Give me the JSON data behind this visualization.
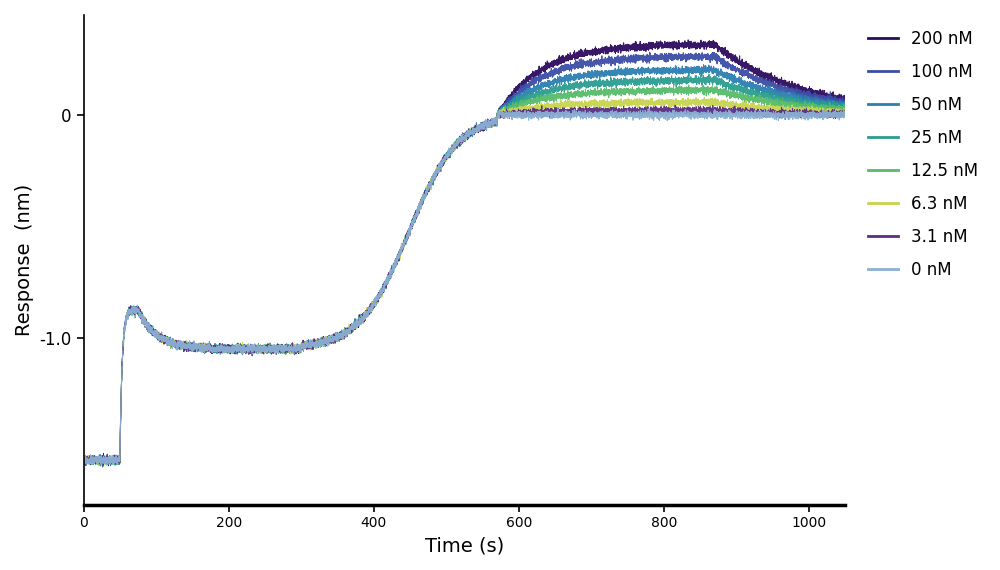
{
  "concentrations": [
    "200 nM",
    "100 nM",
    "50 nM",
    "25 nM",
    "12.5 nM",
    "6.3 nM",
    "3.1 nM",
    "0 nM"
  ],
  "colors": [
    "#2d0a5e",
    "#3c4da6",
    "#2b7eb0",
    "#2a9d8f",
    "#57bb6a",
    "#c8d44e",
    "#5c2d82",
    "#8ab0d4"
  ],
  "xlabel": "Time (s)",
  "ylabel": "Response  (nm)",
  "xlim": [
    0,
    1050
  ],
  "ylim": [
    -1.75,
    0.45
  ],
  "xticks": [
    0,
    200,
    400,
    600,
    800,
    1000
  ],
  "yticks": [
    -1.0,
    0
  ],
  "noise_amplitude": 0.008,
  "t_baseline_end": 50,
  "t_loading_peak": 75,
  "t_loading_end": 175,
  "t_plateau_end": 300,
  "t_wash_end": 570,
  "t_assoc_end": 870,
  "t_end": 1050,
  "baseline_level": -1.55,
  "loading_peak": -0.875,
  "loading_plateau": -1.05,
  "max_responses": [
    0.32,
    0.265,
    0.205,
    0.158,
    0.113,
    0.058,
    0.02,
    0.001
  ],
  "dissoc_rate": 1.5
}
